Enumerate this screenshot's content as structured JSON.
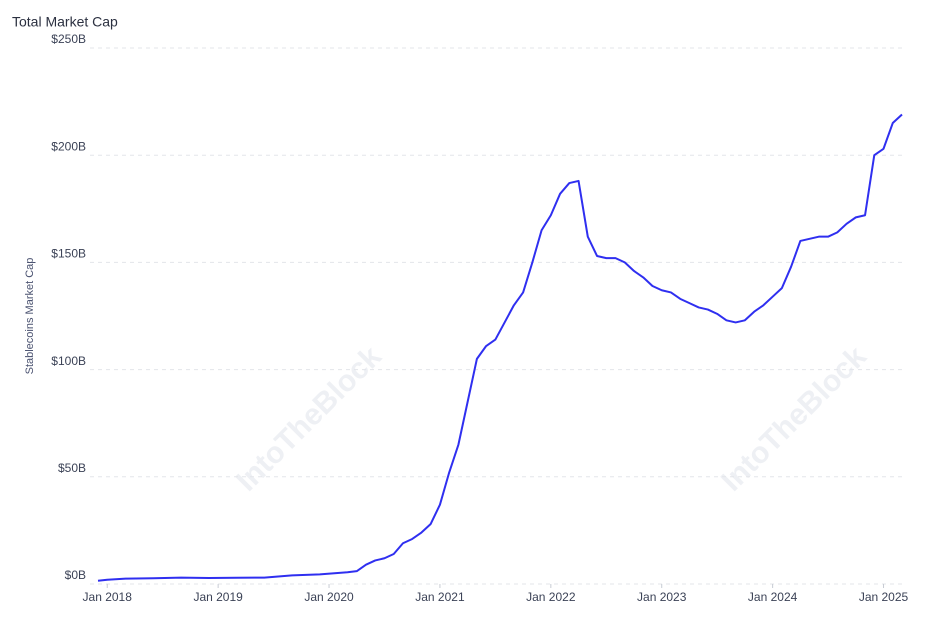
{
  "chart_data": {
    "type": "line",
    "title": "Total Market Cap",
    "y_label": "Stablecoins Market Cap",
    "watermark": "IntoTheBlock",
    "x": [
      "2017-12",
      "2018-01",
      "2018-03",
      "2018-06",
      "2018-09",
      "2018-12",
      "2019-03",
      "2019-06",
      "2019-09",
      "2019-12",
      "2020-03",
      "2020-04",
      "2020-05",
      "2020-06",
      "2020-07",
      "2020-08",
      "2020-09",
      "2020-10",
      "2020-11",
      "2020-12",
      "2021-01",
      "2021-02",
      "2021-03",
      "2021-04",
      "2021-05",
      "2021-06",
      "2021-07",
      "2021-08",
      "2021-09",
      "2021-10",
      "2021-11",
      "2021-12",
      "2022-01",
      "2022-02",
      "2022-03",
      "2022-04",
      "2022-05",
      "2022-06",
      "2022-07",
      "2022-08",
      "2022-09",
      "2022-10",
      "2022-11",
      "2022-12",
      "2023-01",
      "2023-02",
      "2023-03",
      "2023-04",
      "2023-05",
      "2023-06",
      "2023-07",
      "2023-08",
      "2023-09",
      "2023-10",
      "2023-11",
      "2023-12",
      "2024-01",
      "2024-02",
      "2024-03",
      "2024-04",
      "2024-05",
      "2024-06",
      "2024-07",
      "2024-08",
      "2024-09",
      "2024-10",
      "2024-11",
      "2024-12",
      "2025-01",
      "2025-02",
      "2025-03"
    ],
    "series": [
      {
        "name": "Total Market Cap",
        "color": "#2f2ff0",
        "values": [
          1.5,
          2,
          2.5,
          2.7,
          3,
          2.8,
          2.9,
          3,
          4,
          4.5,
          5.5,
          6,
          9,
          11,
          12,
          14,
          19,
          21,
          24,
          28,
          37,
          52,
          65,
          85,
          105,
          111,
          114,
          122,
          130,
          136,
          150,
          165,
          172,
          182,
          187,
          188,
          162,
          153,
          152,
          152,
          150,
          146,
          143,
          139,
          137,
          136,
          133,
          131,
          129,
          128,
          126,
          123,
          122,
          123,
          127,
          130,
          134,
          138,
          148,
          160,
          161,
          162,
          162,
          164,
          168,
          171,
          172,
          200,
          203,
          215,
          219
        ]
      }
    ],
    "xlim": [
      "2017-12",
      "2025-03"
    ],
    "xticks": [
      {
        "value": "2018-01",
        "label": "Jan 2018"
      },
      {
        "value": "2019-01",
        "label": "Jan 2019"
      },
      {
        "value": "2020-01",
        "label": "Jan 2020"
      },
      {
        "value": "2021-01",
        "label": "Jan 2021"
      },
      {
        "value": "2022-01",
        "label": "Jan 2022"
      },
      {
        "value": "2023-01",
        "label": "Jan 2023"
      },
      {
        "value": "2024-01",
        "label": "Jan 2024"
      },
      {
        "value": "2025-01",
        "label": "Jan 2025"
      }
    ],
    "ylim": [
      0,
      250
    ],
    "yticks": [
      {
        "value": 0,
        "label": "$0B"
      },
      {
        "value": 50,
        "label": "$50B"
      },
      {
        "value": 100,
        "label": "$100B"
      },
      {
        "value": 150,
        "label": "$150B"
      },
      {
        "value": 200,
        "label": "$200B"
      },
      {
        "value": 250,
        "label": "$250B"
      }
    ],
    "grid": true
  }
}
